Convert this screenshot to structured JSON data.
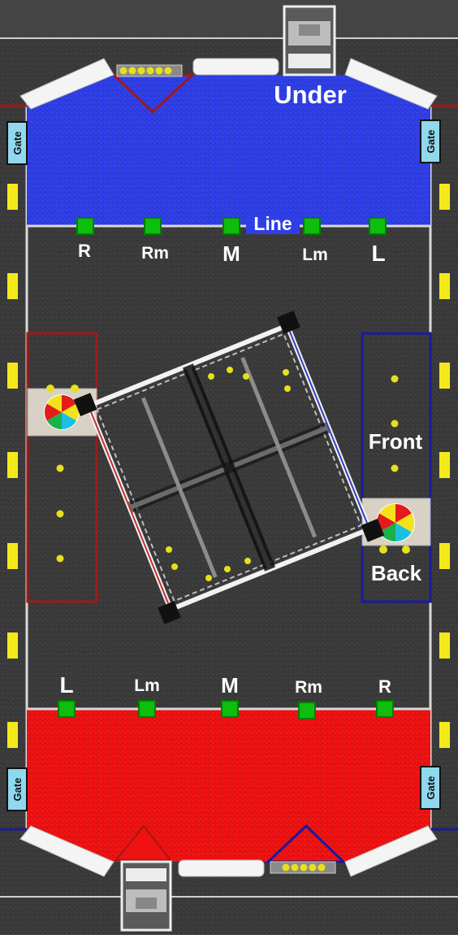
{
  "colors": {
    "carpet": "#3b3b3b",
    "blue_zone": "#2f3fe6",
    "red_zone": "#ee1212",
    "blue_line": "#1a1a9c",
    "red_line": "#9c1a1a",
    "marker_green": "#0dbe0d",
    "gate_fill": "#8fd8ee",
    "yellow_marker": "#f4ea1a",
    "ball": "#e8e01a",
    "text": "#ffffff",
    "wall": "#e8e8e8"
  },
  "blue_zone": {
    "label": "Under",
    "line_label": "Line",
    "markers": [
      "R",
      "Rm",
      "M",
      "Lm",
      "L"
    ]
  },
  "red_zone": {
    "markers": [
      "L",
      "Lm",
      "M",
      "Rm",
      "R"
    ]
  },
  "gates": {
    "top_left": "Gate",
    "top_right": "Gate",
    "bottom_left": "Gate",
    "bottom_right": "Gate"
  },
  "right_station": {
    "front_label": "Front",
    "back_label": "Back"
  },
  "icons": {
    "spinner": "color-wheel-icon",
    "ball": "ball-icon",
    "dispenser": "dispenser-icon"
  }
}
